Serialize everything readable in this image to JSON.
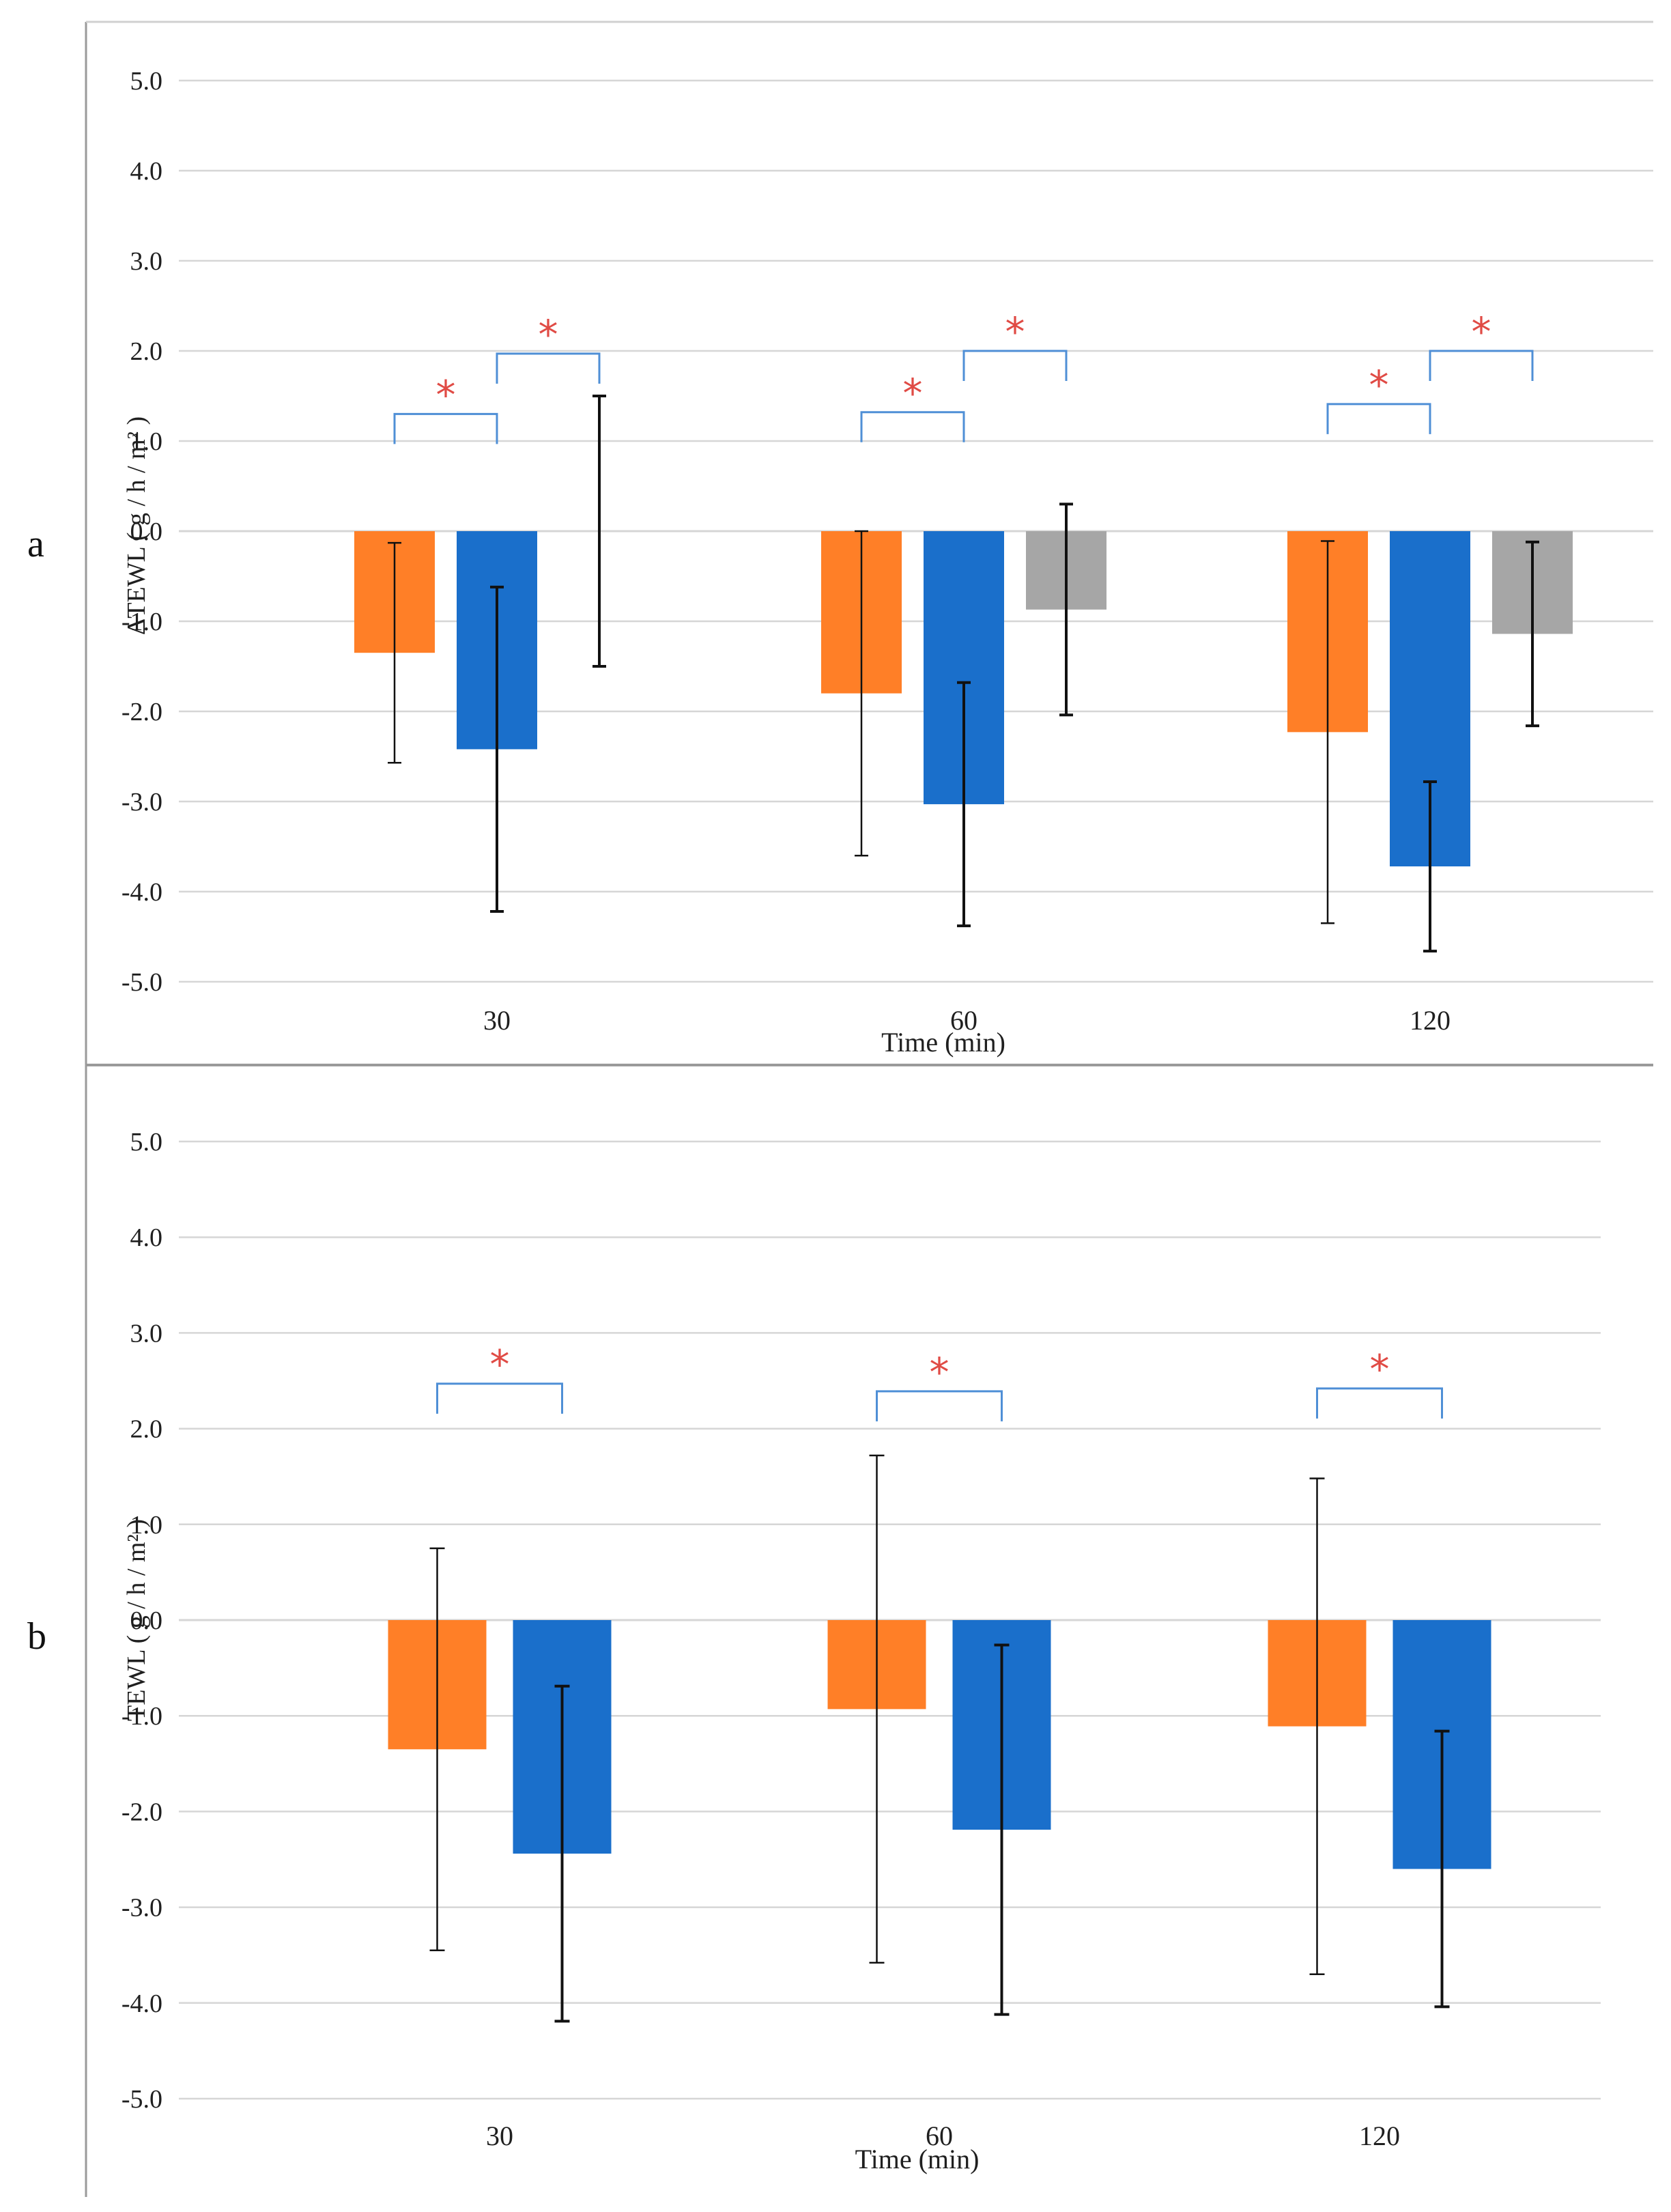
{
  "colors": {
    "series": [
      "#FF7F27",
      "#1A6FCB",
      "#A6A6A6"
    ],
    "bracket": "#4F8FD6",
    "star": "#E04B45",
    "grid": "#D6D6D6",
    "frame": "#9A9A9A"
  },
  "chart_data": [
    {
      "type": "bar",
      "panel_label": "a",
      "xlabel": "Time (min)",
      "ylabel": "ΔTEWL ( g / h / m² )",
      "categories": [
        "30",
        "60",
        "120"
      ],
      "ylim": [
        -5.0,
        5.0
      ],
      "yticks": [
        "5.0",
        "4.0",
        "3.0",
        "2.0",
        "1.0",
        "0.0",
        "-1.0",
        "-2.0",
        "-3.0",
        "-4.0",
        "-5.0"
      ],
      "series": [
        {
          "values": [
            -1.35,
            -1.8,
            -2.23
          ],
          "error": [
            1.22,
            1.8,
            2.12
          ]
        },
        {
          "values": [
            -2.42,
            -3.03,
            -3.72
          ],
          "error": [
            1.8,
            1.35,
            0.94
          ]
        },
        {
          "values": [
            0.0,
            -0.87,
            -1.14
          ],
          "error": [
            1.5,
            1.17,
            1.02
          ]
        }
      ],
      "significance": [
        {
          "category": 0,
          "from": 0,
          "to": 1,
          "label": "*",
          "y": 1.3
        },
        {
          "category": 0,
          "from": 1,
          "to": 2,
          "label": "*",
          "y": 1.97
        },
        {
          "category": 1,
          "from": 0,
          "to": 1,
          "label": "*",
          "y": 1.32
        },
        {
          "category": 1,
          "from": 1,
          "to": 2,
          "label": "*",
          "y": 2.0
        },
        {
          "category": 2,
          "from": 0,
          "to": 1,
          "label": "*",
          "y": 1.41
        },
        {
          "category": 2,
          "from": 1,
          "to": 2,
          "label": "*",
          "y": 2.0
        }
      ],
      "grid": true,
      "legend": "none"
    },
    {
      "type": "bar",
      "panel_label": "b",
      "xlabel": "Time (min)",
      "ylabel": "TEWL ( g / h / m² )",
      "categories": [
        "30",
        "60",
        "120"
      ],
      "ylim": [
        -5.0,
        5.0
      ],
      "yticks": [
        "5.0",
        "4.0",
        "3.0",
        "2.0",
        "1.0",
        "0.0",
        "-1.0",
        "-2.0",
        "-3.0",
        "-4.0",
        "-5.0"
      ],
      "series": [
        {
          "values": [
            -1.35,
            -0.93,
            -1.11
          ],
          "error": [
            2.1,
            2.65,
            2.59
          ]
        },
        {
          "values": [
            -2.44,
            -2.19,
            -2.6
          ],
          "error": [
            1.75,
            1.93,
            1.44
          ]
        }
      ],
      "significance": [
        {
          "category": 0,
          "from": 0,
          "to": 1,
          "label": "*",
          "y": 2.47
        },
        {
          "category": 1,
          "from": 0,
          "to": 1,
          "label": "*",
          "y": 2.39
        },
        {
          "category": 2,
          "from": 0,
          "to": 1,
          "label": "*",
          "y": 2.42
        }
      ],
      "grid": true,
      "legend": "none"
    }
  ]
}
